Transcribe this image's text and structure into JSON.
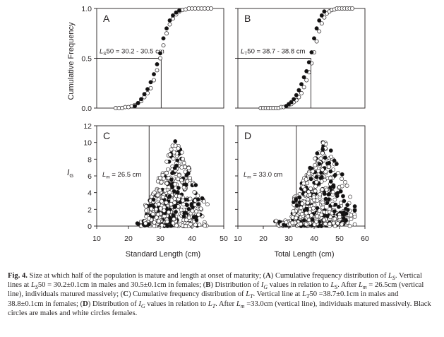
{
  "chart_data": [
    {
      "id": "A",
      "type": "scatter",
      "panel_letter": "A",
      "ylabel": "Cumulative Frequency",
      "ylim": [
        0,
        1
      ],
      "xlim": [
        10,
        50
      ],
      "yticks": [
        "0.0",
        "0.5",
        "1.0"
      ],
      "annotation": {
        "sym": "L",
        "sub": "S",
        "rest": "50 = 30.2 - 30.5 cm"
      },
      "reference": {
        "x": 30.3,
        "y": 0.5
      },
      "series": [
        {
          "name": "Males",
          "fill": "#111111",
          "x": [
            22,
            23,
            24,
            25,
            26,
            27,
            28,
            29,
            30,
            31,
            32,
            33,
            34,
            35,
            36
          ],
          "y": [
            0.02,
            0.05,
            0.09,
            0.14,
            0.19,
            0.26,
            0.34,
            0.44,
            0.55,
            0.7,
            0.8,
            0.88,
            0.93,
            0.96,
            0.98
          ]
        },
        {
          "name": "Females",
          "fill": "#ffffff",
          "x": [
            16,
            17,
            18,
            19,
            20,
            21,
            22,
            23,
            24,
            25,
            26,
            27,
            28,
            29,
            30,
            31,
            32,
            33,
            34,
            35,
            36,
            37,
            38,
            39,
            40,
            41,
            42,
            43,
            44,
            45,
            46
          ],
          "y": [
            0.0,
            0.0,
            0.0,
            0.01,
            0.01,
            0.02,
            0.03,
            0.05,
            0.07,
            0.11,
            0.15,
            0.2,
            0.28,
            0.38,
            0.5,
            0.63,
            0.75,
            0.84,
            0.9,
            0.94,
            0.97,
            0.985,
            0.99,
            1.0,
            1.0,
            1.0,
            1.0,
            1.0,
            1.0,
            1.0,
            1.0
          ]
        }
      ]
    },
    {
      "id": "B",
      "type": "scatter",
      "panel_letter": "B",
      "ylim": [
        0,
        1
      ],
      "xlim": [
        10,
        60
      ],
      "annotation": {
        "sym": "L",
        "sub": "T",
        "rest": "50 = 38.7 - 38.8 cm"
      },
      "reference": {
        "x": 38.75,
        "y": 0.5
      },
      "series": [
        {
          "name": "Males",
          "fill": "#111111",
          "x": [
            29,
            30,
            31,
            32,
            33,
            34,
            35,
            36,
            37,
            38,
            39,
            40,
            41,
            42,
            43,
            44
          ],
          "y": [
            0.02,
            0.04,
            0.06,
            0.09,
            0.13,
            0.18,
            0.24,
            0.31,
            0.37,
            0.46,
            0.56,
            0.7,
            0.8,
            0.88,
            0.93,
            0.97
          ]
        },
        {
          "name": "Females",
          "fill": "#ffffff",
          "x": [
            19,
            20,
            21,
            22,
            23,
            24,
            25,
            26,
            27,
            28,
            29,
            30,
            31,
            32,
            33,
            34,
            35,
            36,
            37,
            38,
            39,
            40,
            41,
            42,
            43,
            44,
            45,
            46,
            47,
            48,
            49,
            50,
            51,
            52,
            53,
            54,
            55
          ],
          "y": [
            0.0,
            0.0,
            0.0,
            0.0,
            0.0,
            0.0,
            0.0,
            0.0,
            0.01,
            0.01,
            0.02,
            0.03,
            0.04,
            0.06,
            0.08,
            0.11,
            0.15,
            0.21,
            0.28,
            0.36,
            0.45,
            0.56,
            0.67,
            0.77,
            0.85,
            0.91,
            0.95,
            0.97,
            0.985,
            0.99,
            1.0,
            1.0,
            1.0,
            1.0,
            1.0,
            1.0,
            1.0
          ]
        }
      ]
    },
    {
      "id": "C",
      "type": "scatter",
      "panel_letter": "C",
      "ylabel": "I",
      "ylabel_sub": "G",
      "xlabel": "Standard Length (cm)",
      "xlim": [
        10,
        50
      ],
      "ylim": [
        0,
        12
      ],
      "xticks": [
        "10",
        "20",
        "30",
        "40",
        "50"
      ],
      "yticks": [
        "0",
        "2",
        "4",
        "6",
        "8",
        "10",
        "12"
      ],
      "annotation": {
        "sym": "L",
        "sub": "m",
        "rest": " = 26.5 cm"
      },
      "reference": {
        "x": 26.5
      },
      "cloud": {
        "x_min": 18,
        "x_max": 45,
        "x_peak": 35,
        "y_max": 10.6,
        "points": 520,
        "seed": 3
      }
    },
    {
      "id": "D",
      "type": "scatter",
      "panel_letter": "D",
      "xlabel": "Total Length (cm)",
      "xlim": [
        10,
        60
      ],
      "ylim": [
        0,
        12
      ],
      "xticks": [
        "10",
        "20",
        "30",
        "40",
        "50",
        "60"
      ],
      "annotation": {
        "sym": "L",
        "sub": "m",
        "rest": " = 33.0 cm"
      },
      "reference": {
        "x": 33.0
      },
      "cloud": {
        "x_min": 17,
        "x_max": 56,
        "x_peak": 44,
        "y_max": 10.6,
        "points": 560,
        "seed": 11
      }
    }
  ],
  "legend": {
    "males": "Black circles are males",
    "females": "white circles females"
  },
  "caption": {
    "label": "Fig. 4.",
    "s1": " Size at which half of the population is mature and length at onset of maturity; (",
    "s2": ") Cumulative frequency distribution of ",
    "s3": ". Vertical lines at ",
    "s4": "50 = 30.2±0.1cm in males and 30.5±0.1cm in females; (",
    "s5": ") Distribution of ",
    "s6": " values in relation to ",
    "s7": ". After ",
    "s8": " = 26.5cm (vertical line), individuals matured massively; (",
    "s9": ") Cumulative frequency distribution of ",
    "s10": ". Vertical line at ",
    "s11": "50 =38.7±0.1cm in males and 38.8±0.1cm in females; (",
    "s12": ") Distribution of ",
    "s13": " values in relation to ",
    "s14": ". After ",
    "s15": " =33.0cm (vertical line), individuals matured massively. Black circles are males and white circles females.",
    "A": "A",
    "B": "B",
    "C": "C",
    "D": "D",
    "L": "L",
    "I": "I",
    "S": "S",
    "T": "T",
    "G": "G",
    "m": "m"
  }
}
